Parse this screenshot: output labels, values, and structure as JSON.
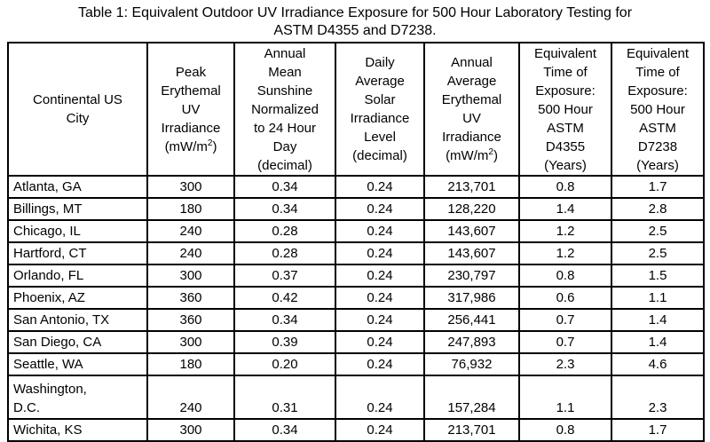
{
  "title": {
    "line1": "Table 1: Equivalent Outdoor UV Irradiance Exposure for 500 Hour Laboratory Testing for",
    "line2": "ASTM D4355 and D7238."
  },
  "table": {
    "headers": {
      "city": "Continental US\nCity",
      "peak": {
        "pre": "Peak\nErythemal\nUV\nIrradiance\n(mW/m",
        "sup": "2",
        "post": ")"
      },
      "sunshine": "Annual\nMean\nSunshine\nNormalized\nto 24 Hour\nDay\n(decimal)",
      "daily": "Daily\nAverage\nSolar\nIrradiance\nLevel\n(decimal)",
      "annual": {
        "pre": "Annual\nAverage\nErythemal\nUV\nIrradiance\n(mW/m",
        "sup": "2",
        "post": ")"
      },
      "d4355": "Equivalent\nTime of\nExposure:\n500 Hour\nASTM\nD4355\n(Years)",
      "d7238": "Equivalent\nTime of\nExposure:\n500 Hour\nASTM\nD7238\n(Years)"
    },
    "columns": [
      "city",
      "peak",
      "sunshine",
      "daily",
      "annual",
      "d4355",
      "d7238"
    ],
    "rows": [
      {
        "city": "Atlanta, GA",
        "peak": "300",
        "sunshine": "0.34",
        "daily": "0.24",
        "annual": "213,701",
        "d4355": "0.8",
        "d7238": "1.7"
      },
      {
        "city": "Billings, MT",
        "peak": "180",
        "sunshine": "0.34",
        "daily": "0.24",
        "annual": "128,220",
        "d4355": "1.4",
        "d7238": "2.8"
      },
      {
        "city": "Chicago, IL",
        "peak": "240",
        "sunshine": "0.28",
        "daily": "0.24",
        "annual": "143,607",
        "d4355": "1.2",
        "d7238": "2.5"
      },
      {
        "city": "Hartford, CT",
        "peak": "240",
        "sunshine": "0.28",
        "daily": "0.24",
        "annual": "143,607",
        "d4355": "1.2",
        "d7238": "2.5"
      },
      {
        "city": "Orlando, FL",
        "peak": "300",
        "sunshine": "0.37",
        "daily": "0.24",
        "annual": "230,797",
        "d4355": "0.8",
        "d7238": "1.5"
      },
      {
        "city": "Phoenix, AZ",
        "peak": "360",
        "sunshine": "0.42",
        "daily": "0.24",
        "annual": "317,986",
        "d4355": "0.6",
        "d7238": "1.1"
      },
      {
        "city": "San Antonio, TX",
        "peak": "360",
        "sunshine": "0.34",
        "daily": "0.24",
        "annual": "256,441",
        "d4355": "0.7",
        "d7238": "1.4"
      },
      {
        "city": "San Diego, CA",
        "peak": "300",
        "sunshine": "0.39",
        "daily": "0.24",
        "annual": "247,893",
        "d4355": "0.7",
        "d7238": "1.4"
      },
      {
        "city": "Seattle, WA",
        "peak": "180",
        "sunshine": "0.20",
        "daily": "0.24",
        "annual": "76,932",
        "d4355": "2.3",
        "d7238": "4.6"
      },
      {
        "city": "Washington,\nD.C.",
        "peak": "240",
        "sunshine": "0.31",
        "daily": "0.24",
        "annual": "157,284",
        "d4355": "1.1",
        "d7238": "2.3",
        "tall": true
      },
      {
        "city": "Wichita, KS",
        "peak": "300",
        "sunshine": "0.34",
        "daily": "0.24",
        "annual": "213,701",
        "d4355": "0.8",
        "d7238": "1.7"
      }
    ]
  },
  "colors": {
    "background": "#ffffff",
    "text": "#000000",
    "border": "#000000"
  }
}
